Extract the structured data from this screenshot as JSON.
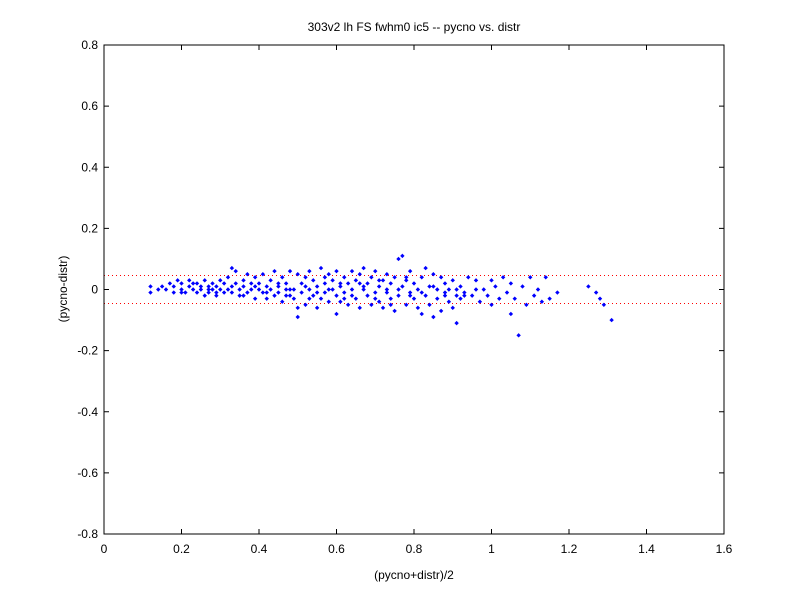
{
  "chart_data": {
    "type": "scatter",
    "title": "303v2 lh FS fwhm0 ic5 -- pycno vs. distr",
    "xlabel": "(pycno+distr)/2",
    "ylabel": "(pycno-distr)",
    "xlim": [
      0,
      1.6
    ],
    "ylim": [
      -0.8,
      0.8
    ],
    "xticks": [
      0,
      0.2,
      0.4,
      0.6,
      0.8,
      1,
      1.2,
      1.4,
      1.6
    ],
    "xtick_labels": [
      "0",
      "0.2",
      "0.4",
      "0.6",
      "0.8",
      "1",
      "1.2",
      "1.4",
      "1.6"
    ],
    "yticks": [
      -0.8,
      -0.6,
      -0.4,
      -0.2,
      0,
      0.2,
      0.4,
      0.6,
      0.8
    ],
    "ytick_labels": [
      "-0.8",
      "-0.6",
      "-0.4",
      "-0.2",
      "0",
      "0.2",
      "0.4",
      "0.6",
      "0.8"
    ],
    "grid": false,
    "reference_lines": [
      0.046,
      -0.046
    ],
    "colors": {
      "points": "#0000ff",
      "reference_lines": "#ff0000",
      "axes": "#000000"
    },
    "points": [
      [
        0.12,
        0.01
      ],
      [
        0.12,
        -0.01
      ],
      [
        0.14,
        0.0
      ],
      [
        0.15,
        0.01
      ],
      [
        0.16,
        0.0
      ],
      [
        0.17,
        0.02
      ],
      [
        0.18,
        0.01
      ],
      [
        0.18,
        -0.01
      ],
      [
        0.19,
        0.03
      ],
      [
        0.2,
        0.0
      ],
      [
        0.2,
        0.02
      ],
      [
        0.21,
        -0.01
      ],
      [
        0.22,
        0.01
      ],
      [
        0.22,
        0.03
      ],
      [
        0.23,
        0.0
      ],
      [
        0.24,
        -0.01
      ],
      [
        0.24,
        0.02
      ],
      [
        0.25,
        0.0
      ],
      [
        0.25,
        0.01
      ],
      [
        0.26,
        -0.02
      ],
      [
        0.26,
        0.03
      ],
      [
        0.27,
        0.01
      ],
      [
        0.27,
        -0.01
      ],
      [
        0.28,
        0.0
      ],
      [
        0.28,
        0.02
      ],
      [
        0.29,
        -0.02
      ],
      [
        0.29,
        0.01
      ],
      [
        0.3,
        0.0
      ],
      [
        0.3,
        0.03
      ],
      [
        0.31,
        -0.01
      ],
      [
        0.31,
        0.02
      ],
      [
        0.32,
        0.0
      ],
      [
        0.32,
        0.04
      ],
      [
        0.33,
        0.07
      ],
      [
        0.33,
        -0.01
      ],
      [
        0.34,
        0.06
      ],
      [
        0.34,
        0.02
      ],
      [
        0.35,
        0.0
      ],
      [
        0.35,
        -0.02
      ],
      [
        0.36,
        0.03
      ],
      [
        0.36,
        0.01
      ],
      [
        0.37,
        -0.01
      ],
      [
        0.37,
        0.05
      ],
      [
        0.38,
        0.0
      ],
      [
        0.38,
        0.02
      ],
      [
        0.39,
        -0.03
      ],
      [
        0.39,
        0.04
      ],
      [
        0.4,
        0.0
      ],
      [
        0.4,
        0.02
      ],
      [
        0.41,
        -0.01
      ],
      [
        0.41,
        0.05
      ],
      [
        0.42,
        0.01
      ],
      [
        0.42,
        -0.03
      ],
      [
        0.43,
        0.03
      ],
      [
        0.43,
        0.0
      ],
      [
        0.44,
        -0.02
      ],
      [
        0.44,
        0.06
      ],
      [
        0.45,
        0.01
      ],
      [
        0.45,
        -0.01
      ],
      [
        0.46,
        0.04
      ],
      [
        0.46,
        -0.04
      ],
      [
        0.47,
        0.02
      ],
      [
        0.47,
        0.0
      ],
      [
        0.48,
        -0.02
      ],
      [
        0.48,
        0.06
      ],
      [
        0.49,
        0.0
      ],
      [
        0.49,
        -0.03
      ],
      [
        0.5,
        0.05
      ],
      [
        0.5,
        -0.06
      ],
      [
        0.5,
        -0.09
      ],
      [
        0.51,
        0.02
      ],
      [
        0.51,
        -0.01
      ],
      [
        0.52,
        0.04
      ],
      [
        0.52,
        -0.05
      ],
      [
        0.53,
        0.0
      ],
      [
        0.53,
        0.06
      ],
      [
        0.54,
        -0.02
      ],
      [
        0.54,
        0.03
      ],
      [
        0.55,
        -0.06
      ],
      [
        0.55,
        0.01
      ],
      [
        0.56,
        0.07
      ],
      [
        0.56,
        -0.03
      ],
      [
        0.57,
        0.02
      ],
      [
        0.57,
        -0.01
      ],
      [
        0.58,
        0.05
      ],
      [
        0.58,
        -0.04
      ],
      [
        0.59,
        0.0
      ],
      [
        0.59,
        0.03
      ],
      [
        0.6,
        -0.02
      ],
      [
        0.6,
        0.06
      ],
      [
        0.6,
        -0.08
      ],
      [
        0.61,
        0.01
      ],
      [
        0.61,
        -0.04
      ],
      [
        0.62,
        0.04
      ],
      [
        0.62,
        -0.01
      ],
      [
        0.63,
        0.02
      ],
      [
        0.63,
        -0.05
      ],
      [
        0.64,
        0.06
      ],
      [
        0.64,
        0.0
      ],
      [
        0.65,
        -0.03
      ],
      [
        0.65,
        0.03
      ],
      [
        0.66,
        -0.06
      ],
      [
        0.66,
        0.05
      ],
      [
        0.67,
        0.0
      ],
      [
        0.67,
        0.07
      ],
      [
        0.68,
        -0.02
      ],
      [
        0.68,
        0.02
      ],
      [
        0.69,
        -0.05
      ],
      [
        0.69,
        0.04
      ],
      [
        0.7,
        -0.01
      ],
      [
        0.7,
        0.06
      ],
      [
        0.71,
        -0.04
      ],
      [
        0.71,
        0.01
      ],
      [
        0.72,
        0.03
      ],
      [
        0.72,
        -0.06
      ],
      [
        0.73,
        0.0
      ],
      [
        0.73,
        0.05
      ],
      [
        0.74,
        -0.03
      ],
      [
        0.74,
        0.02
      ],
      [
        0.75,
        -0.07
      ],
      [
        0.75,
        0.04
      ],
      [
        0.76,
        0.1
      ],
      [
        0.76,
        -0.02
      ],
      [
        0.77,
        0.11
      ],
      [
        0.77,
        0.01
      ],
      [
        0.78,
        -0.05
      ],
      [
        0.78,
        0.03
      ],
      [
        0.79,
        -0.01
      ],
      [
        0.79,
        0.06
      ],
      [
        0.8,
        -0.03
      ],
      [
        0.8,
        0.02
      ],
      [
        0.81,
        -0.06
      ],
      [
        0.81,
        0.0
      ],
      [
        0.82,
        0.04
      ],
      [
        0.82,
        -0.08
      ],
      [
        0.83,
        0.07
      ],
      [
        0.83,
        -0.02
      ],
      [
        0.84,
        0.01
      ],
      [
        0.84,
        -0.05
      ],
      [
        0.85,
        0.05
      ],
      [
        0.85,
        -0.09
      ],
      [
        0.86,
        0.0
      ],
      [
        0.86,
        -0.03
      ],
      [
        0.87,
        0.04
      ],
      [
        0.87,
        -0.07
      ],
      [
        0.88,
        -0.01
      ],
      [
        0.88,
        0.02
      ],
      [
        0.89,
        -0.04
      ],
      [
        0.89,
        0.0
      ],
      [
        0.9,
        -0.06
      ],
      [
        0.9,
        0.03
      ],
      [
        0.91,
        -0.02
      ],
      [
        0.91,
        -0.11
      ],
      [
        0.92,
        0.01
      ],
      [
        0.92,
        -0.03
      ],
      [
        0.93,
        -0.01
      ],
      [
        0.94,
        0.04
      ],
      [
        0.95,
        -0.02
      ],
      [
        0.96,
        0.03
      ],
      [
        0.97,
        -0.04
      ],
      [
        0.98,
        0.0
      ],
      [
        0.99,
        -0.02
      ],
      [
        1.0,
        0.03
      ],
      [
        1.0,
        -0.05
      ],
      [
        1.01,
        0.01
      ],
      [
        1.02,
        -0.03
      ],
      [
        1.03,
        0.04
      ],
      [
        1.04,
        -0.01
      ],
      [
        1.05,
        -0.08
      ],
      [
        1.05,
        0.02
      ],
      [
        1.06,
        -0.03
      ],
      [
        1.07,
        -0.15
      ],
      [
        1.08,
        0.01
      ],
      [
        1.09,
        -0.05
      ],
      [
        1.1,
        0.04
      ],
      [
        1.11,
        -0.02
      ],
      [
        1.12,
        0.0
      ],
      [
        1.13,
        -0.04
      ],
      [
        1.14,
        0.04
      ],
      [
        1.15,
        -0.03
      ],
      [
        1.17,
        -0.01
      ],
      [
        1.25,
        0.01
      ],
      [
        1.27,
        -0.01
      ],
      [
        1.28,
        -0.03
      ],
      [
        1.29,
        -0.05
      ],
      [
        1.31,
        -0.1
      ],
      [
        0.2,
        -0.01
      ],
      [
        0.23,
        0.02
      ],
      [
        0.27,
        0.0
      ],
      [
        0.29,
        -0.01
      ],
      [
        0.33,
        0.01
      ],
      [
        0.36,
        -0.02
      ],
      [
        0.39,
        0.01
      ],
      [
        0.42,
        -0.01
      ],
      [
        0.45,
        0.02
      ],
      [
        0.48,
        0.0
      ],
      [
        0.52,
        0.01
      ],
      [
        0.55,
        -0.01
      ],
      [
        0.58,
        0.0
      ],
      [
        0.61,
        0.02
      ],
      [
        0.64,
        -0.02
      ],
      [
        0.67,
        0.01
      ],
      [
        0.7,
        -0.03
      ],
      [
        0.73,
        -0.01
      ],
      [
        0.76,
        0.0
      ],
      [
        0.79,
        -0.02
      ],
      [
        0.82,
        -0.01
      ],
      [
        0.85,
        0.01
      ],
      [
        0.88,
        -0.02
      ],
      [
        0.91,
        0.0
      ],
      [
        0.93,
        -0.02
      ],
      [
        0.96,
        0.0
      ],
      [
        0.47,
        -0.02
      ],
      [
        0.53,
        -0.03
      ],
      [
        0.57,
        0.04
      ],
      [
        0.62,
        -0.03
      ],
      [
        0.66,
        0.02
      ],
      [
        0.71,
        0.03
      ],
      [
        0.74,
        -0.05
      ],
      [
        0.78,
        0.04
      ]
    ]
  }
}
